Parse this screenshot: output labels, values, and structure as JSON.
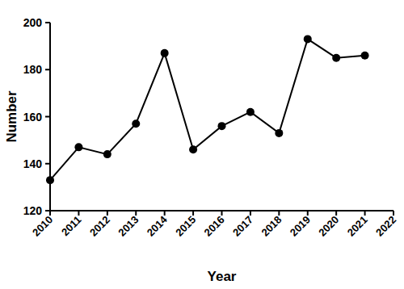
{
  "chart_data": {
    "type": "line",
    "x_label": "Year",
    "y_label": "Number",
    "x": [
      2010,
      2011,
      2012,
      2013,
      2014,
      2015,
      2016,
      2017,
      2018,
      2019,
      2020,
      2021
    ],
    "values": [
      133,
      147,
      144,
      157,
      187,
      146,
      156,
      162,
      153,
      193,
      185,
      186
    ],
    "color": "#000000",
    "marker": "circle",
    "line_style": "solid",
    "xlim": [
      2010,
      2022
    ],
    "xticks": [
      2010,
      2011,
      2012,
      2013,
      2014,
      2015,
      2016,
      2017,
      2018,
      2019,
      2020,
      2021,
      2022
    ],
    "ylim": [
      120,
      200
    ],
    "yticks": [
      120,
      140,
      160,
      180,
      200
    ],
    "grid": false
  }
}
